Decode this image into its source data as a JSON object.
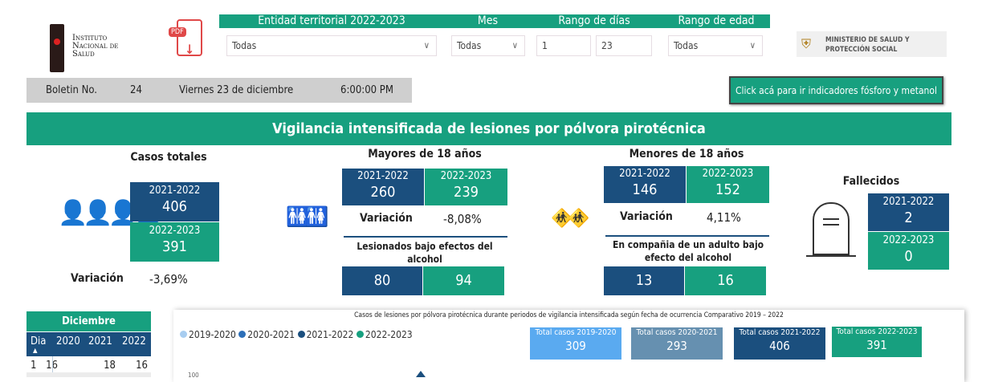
{
  "logo": {
    "ins": [
      "Instituto",
      "Nacional de",
      "Salud"
    ],
    "pdf": "PDF",
    "ministry": "MINISTERIO DE SALUD Y PROTECCIÓN SOCIAL"
  },
  "filters": {
    "entidad": {
      "label": "Entidad territorial 2022-2023",
      "value": "Todas"
    },
    "mes": {
      "label": "Mes",
      "value": "Todas"
    },
    "dias": {
      "label": "Rango de días",
      "from": "1",
      "to": "23"
    },
    "edad": {
      "label": "Rango de edad",
      "value": "Todas"
    }
  },
  "bulletin": {
    "label": "Boletin No.",
    "number": "24",
    "date": "Viernes 23 de diciembre",
    "time": "6:00:00 PM"
  },
  "link_button": "Click acá para ir indicadores fósforo y metanol",
  "title": "Vigilancia intensificada de lesiones por pólvora pirotécnica",
  "totales": {
    "title": "Casos totales",
    "p1": "2021-2022",
    "v1": "406",
    "p2": "2022-2023",
    "v2": "391",
    "var_label": "Variación",
    "var": "-3,69%"
  },
  "mayores": {
    "title": "Mayores de 18 años",
    "p1": "2021-2022",
    "v1": "260",
    "p2": "2022-2023",
    "v2": "239",
    "var_label": "Variación",
    "var": "-8,08%",
    "sub": "Lesionados bajo efectos del alcohol",
    "s1": "80",
    "s2": "94"
  },
  "menores": {
    "title": "Menores de 18 años",
    "p1": "2021-2022",
    "v1": "146",
    "p2": "2022-2023",
    "v2": "152",
    "var_label": "Variación",
    "var": "4,11%",
    "sub": "En compañia de un adulto bajo efecto del alcohol",
    "s1": "13",
    "s2": "16"
  },
  "fallecidos": {
    "title": "Fallecidos",
    "p1": "2021-2022",
    "v1": "2",
    "p2": "2022-2023",
    "v2": "0"
  },
  "table": {
    "title": "Diciembre",
    "headers": [
      "Dia",
      "2020",
      "2021",
      "2022"
    ],
    "rows": [
      [
        "1",
        "16",
        "18",
        "16"
      ]
    ]
  },
  "chart": {
    "title": "Casos de lesiones por pólvora pirotécnica durante periodos de vigilancia intensificada según fecha de ocurrencia Comparativo 2019 – 2022",
    "legend": [
      {
        "name": "2019-2020",
        "color": "#a8cdf0"
      },
      {
        "name": "2020-2021",
        "color": "#2d6fb8"
      },
      {
        "name": "2021-2022",
        "color": "#1b4f7e"
      },
      {
        "name": "2022-2023",
        "color": "#17a07f"
      }
    ],
    "totals": [
      {
        "label": "Total casos 2019-2020",
        "value": "309",
        "color": "#5aaaf0"
      },
      {
        "label": "Total casos 2020-2021",
        "value": "293",
        "color": "#6690b0"
      },
      {
        "label": "Total casos 2021-2022",
        "value": "406",
        "color": "#1b4f7e"
      },
      {
        "label": "Total casos 2022-2023",
        "value": "391",
        "color": "#17a07f"
      }
    ],
    "ytick": "100"
  }
}
